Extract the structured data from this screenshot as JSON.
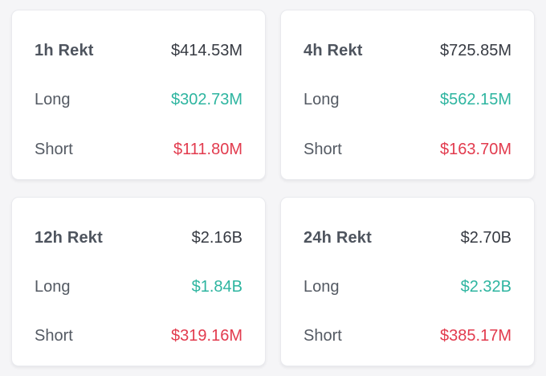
{
  "colors": {
    "page_bg": "#f5f5f7",
    "card_bg": "#ffffff",
    "card_border": "#e9eaee",
    "title_text": "#4e545e",
    "row_label_text": "#545a63",
    "total_value_text": "#363a42",
    "long_value_text": "#2eb5a0",
    "short_value_text": "#e23b4e"
  },
  "cards": [
    {
      "title": "1h Rekt",
      "total": "$414.53M",
      "long_label": "Long",
      "long_value": "$302.73M",
      "short_label": "Short",
      "short_value": "$111.80M"
    },
    {
      "title": "4h Rekt",
      "total": "$725.85M",
      "long_label": "Long",
      "long_value": "$562.15M",
      "short_label": "Short",
      "short_value": "$163.70M"
    },
    {
      "title": "12h Rekt",
      "total": "$2.16B",
      "long_label": "Long",
      "long_value": "$1.84B",
      "short_label": "Short",
      "short_value": "$319.16M"
    },
    {
      "title": "24h Rekt",
      "total": "$2.70B",
      "long_label": "Long",
      "long_value": "$2.32B",
      "short_label": "Short",
      "short_value": "$385.17M"
    }
  ]
}
